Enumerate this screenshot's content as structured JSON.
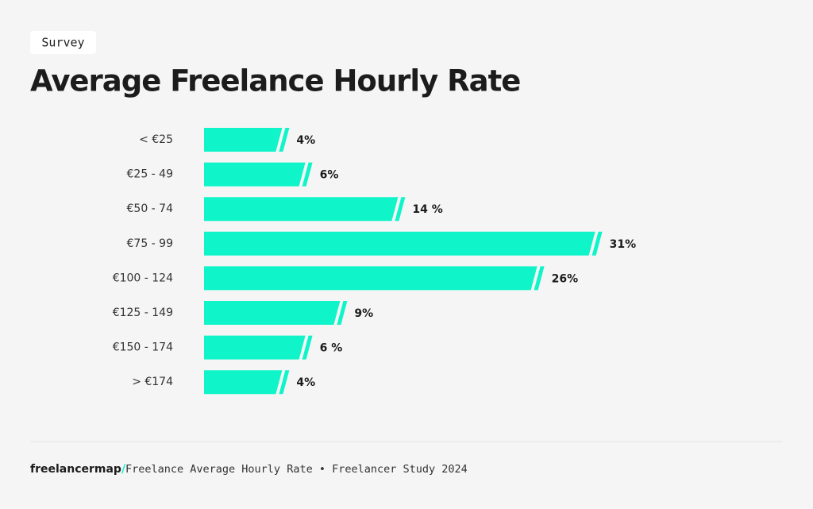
{
  "badge": "Survey",
  "footer": {
    "logo": "freelancermap",
    "logo_mark": "/",
    "caption": "Freelance Average Hourly Rate • Freelancer Study 2024"
  },
  "chart_data": {
    "type": "bar",
    "orientation": "horizontal",
    "title": "Average Freelance Hourly Rate",
    "categories": [
      "< €25",
      "€25 - 49",
      "€50 - 74",
      "€75 - 99",
      "€100 - 124",
      "€125 - 149",
      "€150 - 174",
      "> €174"
    ],
    "values": [
      4,
      6,
      14,
      31,
      26,
      9,
      6,
      4
    ],
    "value_labels": [
      "4%",
      "6%",
      "14 %",
      "31%",
      "26%",
      "9%",
      "6 %",
      "4%"
    ],
    "color": "#0ff5c9"
  }
}
